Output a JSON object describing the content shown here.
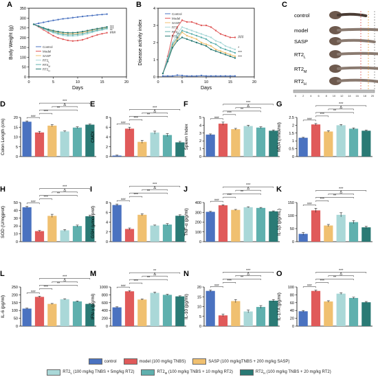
{
  "colors": {
    "control": "#4a72c0",
    "model": "#e05a5a",
    "sasp": "#f0c070",
    "rt2l": "#aad8d8",
    "rt2m": "#5fb0ae",
    "rt2h": "#2a7a75",
    "sig_line": "#222222"
  },
  "legend": {
    "row1": [
      {
        "key": "control",
        "label": "control"
      },
      {
        "key": "model",
        "label": "model (100 mg/kg TNBS)"
      },
      {
        "key": "sasp",
        "label": "SASP (100 mg/kgTNBS + 200 mg/kg SASP)"
      }
    ],
    "row2": [
      {
        "key": "rt2l",
        "label": "RT2L (100 mg/kg TNBS + 5mg/kg RT2)"
      },
      {
        "key": "rt2m",
        "label": "RT2M (100 mg/kg TNBS + 10 mg/kg RT2)"
      },
      {
        "key": "rt2h",
        "label": "RT2H (100 mg/kg TNBS + 20 mg/kg RT2)"
      }
    ]
  },
  "panelC": {
    "letter": "C",
    "labels": [
      "control",
      "model",
      "SASP",
      "RT2L",
      "RT2M",
      "RT2H"
    ],
    "ruler": [
      "0",
      "2",
      "4",
      "6",
      "8",
      "10",
      "12",
      "14",
      "16",
      "18",
      "20"
    ]
  },
  "chart_data": [
    {
      "id": "A",
      "letter": "A",
      "type": "line",
      "xlabel": "Days",
      "ylabel": "Body Weight (g)",
      "xlim": [
        0,
        20
      ],
      "ylim": [
        0,
        350
      ],
      "xticks": [
        0,
        5,
        10,
        15,
        20
      ],
      "yticks": [
        0,
        50,
        100,
        150,
        200,
        250,
        300,
        350
      ],
      "x": [
        1,
        2,
        3,
        4,
        5,
        6,
        7,
        8,
        9,
        10,
        11,
        12,
        13,
        14,
        15,
        16
      ],
      "series": [
        {
          "name": "Control",
          "key": "control",
          "values": [
            268,
            273,
            278,
            283,
            288,
            292,
            296,
            299,
            302,
            305,
            308,
            311,
            313,
            316,
            318,
            320
          ]
        },
        {
          "name": "Model",
          "key": "model",
          "values": [
            268,
            255,
            240,
            225,
            210,
            199,
            192,
            186,
            183,
            185,
            189,
            197,
            206,
            214,
            220,
            225
          ]
        },
        {
          "name": "SASP",
          "key": "sasp",
          "values": [
            268,
            258,
            248,
            240,
            233,
            227,
            222,
            220,
            220,
            222,
            226,
            232,
            238,
            244,
            248,
            252
          ]
        },
        {
          "name": "RT2L",
          "key": "rt2l",
          "values": [
            268,
            257,
            245,
            234,
            225,
            217,
            211,
            208,
            208,
            210,
            214,
            220,
            227,
            234,
            239,
            244
          ]
        },
        {
          "name": "RT2M",
          "key": "rt2m",
          "values": [
            268,
            258,
            247,
            237,
            229,
            222,
            217,
            214,
            214,
            216,
            220,
            226,
            232,
            238,
            243,
            248
          ]
        },
        {
          "name": "RT2H",
          "key": "rt2h",
          "values": [
            268,
            259,
            250,
            242,
            236,
            231,
            227,
            225,
            225,
            227,
            231,
            236,
            241,
            246,
            250,
            255
          ]
        }
      ],
      "legend": [
        "Control",
        "Model",
        "SASP",
        "RT2L",
        "RT2M",
        "RT2H"
      ],
      "annotations": [
        "***",
        "***",
        "**",
        "###"
      ]
    },
    {
      "id": "B",
      "letter": "B",
      "type": "line",
      "xlabel": "Days",
      "ylabel": "Disease activity index",
      "xlim": [
        0,
        20
      ],
      "ylim": [
        0,
        4
      ],
      "xticks": [
        0,
        5,
        10,
        15,
        20
      ],
      "yticks": [
        0,
        1,
        2,
        3,
        4
      ],
      "x": [
        1,
        2,
        3,
        4,
        5,
        6,
        7,
        8,
        9,
        10,
        11,
        12,
        13,
        14,
        15,
        16
      ],
      "series": [
        {
          "name": "Control",
          "key": "control",
          "values": [
            0.05,
            0.05,
            0.05,
            0.1,
            0.08,
            0.05,
            0.05,
            0.05,
            0.08,
            0.05,
            0.05,
            0.05,
            0.05,
            0.05,
            0.05,
            0.05
          ]
        },
        {
          "name": "Model",
          "key": "model",
          "values": [
            0.2,
            1.2,
            2.4,
            2.9,
            3.3,
            3.2,
            3.2,
            3.1,
            3.0,
            3.0,
            2.9,
            2.7,
            2.5,
            2.4,
            2.3,
            2.3
          ]
        },
        {
          "name": "SASP",
          "key": "sasp",
          "values": [
            0.2,
            1.0,
            1.8,
            2.2,
            2.6,
            2.4,
            2.3,
            2.2,
            2.0,
            1.9,
            1.8,
            1.6,
            1.5,
            1.4,
            1.3,
            1.2
          ]
        },
        {
          "name": "RT2L",
          "key": "rt2l",
          "values": [
            0.2,
            1.1,
            2.0,
            2.5,
            2.9,
            2.8,
            2.7,
            2.6,
            2.5,
            2.4,
            2.3,
            2.1,
            2.0,
            1.8,
            1.7,
            1.6
          ]
        },
        {
          "name": "RT2M",
          "key": "rt2m",
          "values": [
            0.2,
            1.0,
            1.9,
            2.3,
            2.7,
            2.6,
            2.5,
            2.4,
            2.3,
            2.2,
            2.0,
            1.9,
            1.7,
            1.6,
            1.5,
            1.4
          ]
        },
        {
          "name": "RT2H",
          "key": "rt2h",
          "values": [
            0.2,
            0.9,
            1.7,
            2.1,
            2.3,
            2.2,
            2.1,
            2.0,
            1.9,
            1.8,
            1.6,
            1.5,
            1.4,
            1.3,
            1.2,
            1.1
          ]
        }
      ],
      "legend": [
        "Control",
        "Model",
        "SASP",
        "RT2L",
        "RT2M",
        "RT2H"
      ],
      "annotations": [
        "###",
        "*",
        "***",
        "***"
      ]
    },
    {
      "id": "D",
      "letter": "D",
      "type": "bar",
      "ylabel": "Colon Length (cm)",
      "ylim": [
        0,
        20
      ],
      "yticks": [
        0,
        5,
        10,
        15,
        20
      ],
      "values": [
        17.8,
        12.3,
        15.8,
        12.8,
        14.8,
        16.3
      ],
      "errors": [
        0.4,
        0.6,
        0.5,
        0.3,
        0.4,
        0.3
      ],
      "sig": [
        "###",
        "***",
        "**",
        "Δ",
        "***"
      ]
    },
    {
      "id": "E",
      "letter": "E",
      "type": "bar",
      "ylabel": "CMDI",
      "ylim": [
        0,
        8
      ],
      "yticks": [
        0,
        2,
        4,
        6,
        8
      ],
      "values": [
        0.2,
        5.7,
        3.0,
        4.9,
        4.4,
        2.9
      ],
      "errors": [
        0.1,
        0.3,
        0.3,
        0.3,
        0.3,
        0.2
      ],
      "sig": [
        "###",
        "***",
        "**",
        "Δ",
        "***"
      ]
    },
    {
      "id": "F",
      "letter": "F",
      "type": "bar",
      "ylabel": "Spleen Index",
      "ylim": [
        0,
        5
      ],
      "yticks": [
        0,
        1,
        2,
        3,
        4,
        5
      ],
      "values": [
        2.8,
        4.2,
        3.5,
        3.9,
        3.7,
        3.3
      ],
      "errors": [
        0.1,
        0.2,
        0.1,
        0.1,
        0.1,
        0.1
      ],
      "sig": [
        "###",
        "***",
        "**",
        "Δ",
        "***"
      ]
    },
    {
      "id": "G",
      "letter": "G",
      "type": "bar",
      "ylabel": "MDA (nmol/ml)",
      "ylim": [
        0,
        2.5
      ],
      "yticks": [
        0,
        0.5,
        1.0,
        1.5,
        2.0,
        2.5
      ],
      "values": [
        1.2,
        2.05,
        1.6,
        2.0,
        1.78,
        1.65
      ],
      "errors": [
        0.03,
        0.06,
        0.05,
        0.05,
        0.05,
        0.04
      ],
      "sig": [
        "###",
        "***",
        "**",
        "Δ",
        "***"
      ]
    },
    {
      "id": "H",
      "letter": "H",
      "type": "bar",
      "ylabel": "SOD (U/mgprot)",
      "ylim": [
        0,
        50
      ],
      "yticks": [
        0,
        10,
        20,
        30,
        40,
        50
      ],
      "values": [
        44,
        13.5,
        33,
        14.5,
        20,
        32.5
      ],
      "errors": [
        1.0,
        0.8,
        2.0,
        1.0,
        1.2,
        1.5
      ],
      "sig": [
        "###",
        "***",
        "**",
        "Δ",
        "***"
      ]
    },
    {
      "id": "I",
      "letter": "I",
      "type": "bar",
      "ylabel": "GSH (μmol/prot)",
      "ylim": [
        0,
        8
      ],
      "yticks": [
        0,
        2,
        4,
        6,
        8
      ],
      "values": [
        7.5,
        2.6,
        5.5,
        3.3,
        3.5,
        5.3
      ],
      "errors": [
        0.2,
        0.2,
        0.2,
        0.1,
        0.2,
        0.2
      ],
      "sig": [
        "###",
        "***",
        "**",
        "Δ",
        "***"
      ]
    },
    {
      "id": "J",
      "letter": "J",
      "type": "bar",
      "ylabel": "TNF-α (pg/ml)",
      "ylim": [
        0,
        400
      ],
      "yticks": [
        0,
        100,
        200,
        300,
        400
      ],
      "values": [
        305,
        372,
        325,
        352,
        345,
        310
      ],
      "errors": [
        5,
        6,
        5,
        5,
        5,
        5
      ],
      "sig": [
        "###",
        "***",
        "**",
        "Δ",
        "***"
      ]
    },
    {
      "id": "K",
      "letter": "K",
      "type": "bar",
      "ylabel": "IL-1β (pg/mL)",
      "ylim": [
        0,
        150
      ],
      "yticks": [
        0,
        50,
        100,
        150
      ],
      "values": [
        30,
        120,
        62,
        103,
        75,
        55
      ],
      "errors": [
        5,
        8,
        4,
        8,
        6,
        4
      ],
      "sig": [
        "###",
        "***",
        "**",
        "Δ",
        "***"
      ]
    },
    {
      "id": "L",
      "letter": "L",
      "type": "bar",
      "ylabel": "IL-6 (pg/ml)",
      "ylim": [
        0,
        250
      ],
      "yticks": [
        0,
        50,
        100,
        150,
        200,
        250
      ],
      "values": [
        112,
        187,
        142,
        172,
        158,
        142
      ],
      "errors": [
        3,
        4,
        3,
        3,
        3,
        3
      ],
      "sig": [
        "###",
        "***",
        "**",
        "Δ",
        "***"
      ]
    },
    {
      "id": "M",
      "letter": "M",
      "type": "bar",
      "ylabel": "IFN-γ (pg/ml)",
      "ylim": [
        0,
        1000
      ],
      "yticks": [
        0,
        200,
        400,
        600,
        800,
        1000
      ],
      "values": [
        480,
        890,
        680,
        850,
        800,
        760
      ],
      "errors": [
        15,
        20,
        15,
        20,
        15,
        15
      ],
      "sig": [
        "###",
        "***",
        "**",
        "Δ",
        "**"
      ]
    },
    {
      "id": "N",
      "letter": "N",
      "type": "bar",
      "ylabel": "IL-10 (pg/ml)",
      "ylim": [
        0,
        20
      ],
      "yticks": [
        0,
        5,
        10,
        15,
        20
      ],
      "values": [
        18,
        5.5,
        12.8,
        7.5,
        9.8,
        13
      ],
      "errors": [
        0.5,
        0.6,
        0.8,
        0.7,
        0.7,
        0.6
      ],
      "sig": [
        "###",
        "***",
        "**",
        "Δ",
        "***"
      ]
    },
    {
      "id": "O",
      "letter": "O",
      "type": "bar",
      "ylabel": "IL-17A (pg/ml)",
      "ylim": [
        0,
        100
      ],
      "yticks": [
        0,
        20,
        40,
        60,
        80,
        100
      ],
      "values": [
        38,
        90,
        63,
        83,
        72,
        61
      ],
      "errors": [
        2,
        2,
        2,
        2,
        2,
        2
      ],
      "sig": [
        "###",
        "***",
        "**",
        "Δ",
        "***"
      ]
    }
  ]
}
